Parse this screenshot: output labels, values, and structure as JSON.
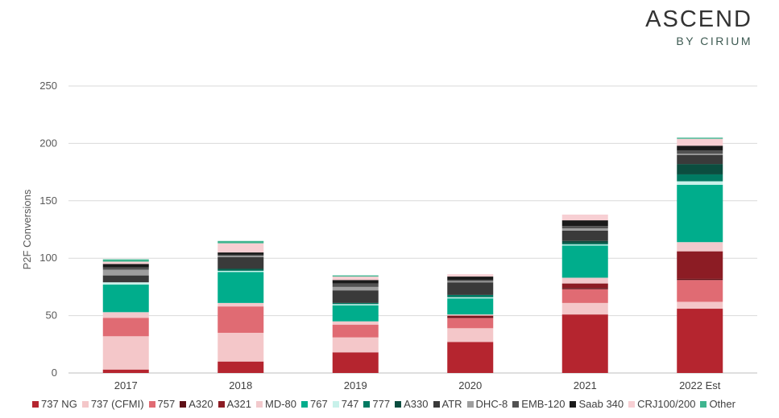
{
  "logo": {
    "main": "ASCEND",
    "sub": "BY CIRIUM"
  },
  "chart_data": {
    "type": "bar",
    "stacked": true,
    "title": "",
    "xlabel": "",
    "ylabel": "P2F Conversions",
    "ylim": [
      0,
      250
    ],
    "yticks": [
      0,
      50,
      100,
      150,
      200,
      250
    ],
    "grid": true,
    "legend_position": "bottom",
    "categories": [
      "2017",
      "2018",
      "2019",
      "2020",
      "2021",
      "2022 Est"
    ],
    "series": [
      {
        "name": "737 NG",
        "color": "#b5252f",
        "values": [
          3,
          10,
          18,
          27,
          51,
          56
        ]
      },
      {
        "name": "737 (CFMI)",
        "color": "#f4c7c9",
        "values": [
          29,
          25,
          13,
          12,
          10,
          6
        ]
      },
      {
        "name": "757",
        "color": "#e06b73",
        "values": [
          16,
          23,
          11,
          9,
          12,
          19
        ]
      },
      {
        "name": "A320",
        "color": "#5e1016",
        "values": [
          0,
          0,
          0,
          1,
          1,
          1
        ]
      },
      {
        "name": "A321",
        "color": "#8c1c24",
        "values": [
          0,
          0,
          0,
          1,
          4,
          24
        ]
      },
      {
        "name": "MD-80",
        "color": "#f2c9cc",
        "values": [
          5,
          3,
          3,
          1,
          5,
          8
        ]
      },
      {
        "name": "767",
        "color": "#00ad8c",
        "values": [
          24,
          27,
          14,
          14,
          28,
          50
        ]
      },
      {
        "name": "747",
        "color": "#c8f1ea",
        "values": [
          2,
          1,
          1,
          1,
          1,
          3
        ]
      },
      {
        "name": "777",
        "color": "#007a62",
        "values": [
          0,
          1,
          1,
          2,
          1,
          6
        ]
      },
      {
        "name": "A330",
        "color": "#0b4d3f",
        "values": [
          0,
          1,
          0,
          0,
          2,
          9
        ]
      },
      {
        "name": "ATR",
        "color": "#3a3a3a",
        "values": [
          6,
          10,
          11,
          11,
          9,
          8
        ]
      },
      {
        "name": "DHC-8",
        "color": "#9e9e9e",
        "values": [
          5,
          1,
          3,
          1,
          2,
          1
        ]
      },
      {
        "name": "EMB-120",
        "color": "#525252",
        "values": [
          2,
          1,
          3,
          1,
          2,
          3
        ]
      },
      {
        "name": "Saab 340",
        "color": "#1a1a1a",
        "values": [
          3,
          2,
          3,
          3,
          5,
          4
        ]
      },
      {
        "name": "CRJ100/200",
        "color": "#f7cfd3",
        "values": [
          2,
          8,
          3,
          2,
          5,
          6
        ]
      },
      {
        "name": "Other",
        "color": "#3fb58f",
        "values": [
          2,
          2,
          1,
          0,
          0,
          1
        ]
      }
    ]
  }
}
